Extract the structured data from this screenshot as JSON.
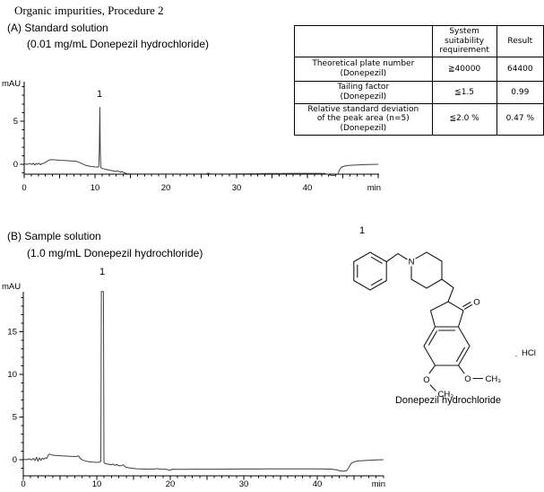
{
  "title": "Organic impurities, Procedure 2",
  "panel_a": {
    "label": "(A) Standard solution",
    "sublabel": "(0.01 mg/mL Donepezil hydrochloride)"
  },
  "panel_b": {
    "label": "(B) Sample solution",
    "sublabel": "(1.0 mg/mL Donepezil hydrochloride)"
  },
  "table": {
    "headers": [
      "",
      "System suitability requirement",
      "Result"
    ],
    "rows": [
      {
        "name": "Theoretical plate number\n(Donepezil)",
        "requirement": "≧40000",
        "result": "64400"
      },
      {
        "name": "Tailing factor\n(Donepezil)",
        "requirement": "≦1.5",
        "result": "0.99"
      },
      {
        "name": "Relative standard deviation\nof the peak area (n=5)\n(Donepezil)",
        "requirement": "≦2.0 %",
        "result": "0.47 %"
      }
    ]
  },
  "structure": {
    "peak_number": "1",
    "n": "N",
    "o": "O",
    "ch3": "CH₃",
    "salt_dot": ".",
    "salt": "HCl",
    "caption": "Donepezil hydrochloride"
  },
  "chart_data": [
    {
      "type": "line",
      "panel": "A",
      "title": "(A) Standard solution (0.01 mg/mL Donepezil hydrochloride)",
      "xlabel": "min",
      "ylabel": "mAU",
      "xlim": [
        0,
        50
      ],
      "ylim": [
        -1.15,
        9.5
      ],
      "xticks": [
        0,
        10,
        20,
        30,
        40
      ],
      "yticks": [
        0,
        5
      ],
      "x_minor_step": 1,
      "y_minor_step": 1,
      "grid": false,
      "peaks": [
        {
          "label": "1",
          "retention_min": 10.7,
          "height_mau": 6.6
        }
      ],
      "points": [
        [
          0,
          0.05
        ],
        [
          0.4,
          0.0
        ],
        [
          0.8,
          0.08
        ],
        [
          1.1,
          -0.02
        ],
        [
          1.3,
          0.12
        ],
        [
          1.5,
          -0.08
        ],
        [
          1.7,
          0.1
        ],
        [
          1.9,
          0.0
        ],
        [
          2.1,
          0.12
        ],
        [
          2.3,
          -0.05
        ],
        [
          2.5,
          0.08
        ],
        [
          2.8,
          0.12
        ],
        [
          3.1,
          0.28
        ],
        [
          3.5,
          0.48
        ],
        [
          3.9,
          0.55
        ],
        [
          4.3,
          0.52
        ],
        [
          4.7,
          0.5
        ],
        [
          5.1,
          0.46
        ],
        [
          5.6,
          0.44
        ],
        [
          6.1,
          0.42
        ],
        [
          6.6,
          0.4
        ],
        [
          7.1,
          0.36
        ],
        [
          7.5,
          0.32
        ],
        [
          7.9,
          0.18
        ],
        [
          8.3,
          0.02
        ],
        [
          8.7,
          -0.12
        ],
        [
          9.1,
          -0.2
        ],
        [
          9.5,
          -0.26
        ],
        [
          10.0,
          -0.3
        ],
        [
          10.4,
          -0.32
        ],
        [
          10.55,
          -0.25
        ],
        [
          10.62,
          2.0
        ],
        [
          10.68,
          6.6
        ],
        [
          10.75,
          1.5
        ],
        [
          10.82,
          -0.4
        ],
        [
          11.1,
          -0.5
        ],
        [
          11.5,
          -0.58
        ],
        [
          12.0,
          -0.68
        ],
        [
          12.5,
          -0.76
        ],
        [
          12.9,
          -0.82
        ],
        [
          13.2,
          -0.78
        ],
        [
          13.6,
          -0.9
        ],
        [
          13.9,
          -0.85
        ],
        [
          14.1,
          -0.98
        ],
        [
          14.5,
          -1.08
        ],
        [
          15.0,
          -1.12
        ],
        [
          16,
          -1.13
        ],
        [
          18,
          -1.12
        ],
        [
          20,
          -1.13
        ],
        [
          22,
          -1.12
        ],
        [
          24,
          -1.12
        ],
        [
          25.7,
          -1.1
        ],
        [
          26.0,
          -1.03
        ],
        [
          26.3,
          -1.12
        ],
        [
          28,
          -1.12
        ],
        [
          30,
          -1.1
        ],
        [
          32,
          -1.09
        ],
        [
          34,
          -1.07
        ],
        [
          36,
          -1.06
        ],
        [
          38,
          -1.05
        ],
        [
          40,
          -1.05
        ],
        [
          41.5,
          -1.05
        ],
        [
          42.5,
          -1.07
        ],
        [
          43.0,
          -1.2
        ],
        [
          43.5,
          -1.3
        ],
        [
          43.9,
          -1.28
        ],
        [
          44.3,
          -1.1
        ],
        [
          44.6,
          -0.55
        ],
        [
          44.9,
          -0.3
        ],
        [
          45.3,
          -0.2
        ],
        [
          45.8,
          -0.14
        ],
        [
          46.4,
          -0.1
        ],
        [
          47.0,
          -0.08
        ],
        [
          47.8,
          -0.05
        ],
        [
          48.6,
          -0.03
        ],
        [
          49.3,
          -0.01
        ],
        [
          50.0,
          0.0
        ]
      ]
    },
    {
      "type": "line",
      "panel": "B",
      "title": "(B) Sample solution (1.0 mg/mL Donepezil hydrochloride)",
      "xlabel": "min",
      "ylabel": "mAU",
      "xlim": [
        0,
        49
      ],
      "ylim": [
        -1.9,
        19.7
      ],
      "xticks": [
        0,
        10,
        20,
        30,
        40
      ],
      "yticks": [
        0,
        5,
        10,
        15
      ],
      "x_minor_step": 1,
      "y_minor_step": 1,
      "grid": false,
      "peaks": [
        {
          "label": "1",
          "retention_min": 10.7,
          "height_mau": 19.7,
          "note": "off-scale, clipped at top of axis"
        }
      ],
      "points": [
        [
          0,
          0.05
        ],
        [
          0.4,
          0.0
        ],
        [
          0.8,
          0.1
        ],
        [
          1.1,
          -0.02
        ],
        [
          1.4,
          0.15
        ],
        [
          1.6,
          -0.12
        ],
        [
          1.8,
          0.28
        ],
        [
          2.0,
          -0.18
        ],
        [
          2.2,
          0.22
        ],
        [
          2.4,
          -0.1
        ],
        [
          2.6,
          0.18
        ],
        [
          2.8,
          0.05
        ],
        [
          3.0,
          0.22
        ],
        [
          3.2,
          0.15
        ],
        [
          3.4,
          0.55
        ],
        [
          3.6,
          0.65
        ],
        [
          3.9,
          0.55
        ],
        [
          4.3,
          0.5
        ],
        [
          4.8,
          0.47
        ],
        [
          5.3,
          0.44
        ],
        [
          5.8,
          0.42
        ],
        [
          6.3,
          0.4
        ],
        [
          6.8,
          0.38
        ],
        [
          7.3,
          0.38
        ],
        [
          7.5,
          0.45
        ],
        [
          7.8,
          0.1
        ],
        [
          8.2,
          -0.08
        ],
        [
          8.6,
          -0.18
        ],
        [
          9.0,
          -0.25
        ],
        [
          9.5,
          -0.3
        ],
        [
          10.0,
          -0.32
        ],
        [
          10.4,
          -0.3
        ],
        [
          10.55,
          -0.2
        ],
        [
          10.62,
          19.7
        ],
        [
          10.9,
          19.7
        ],
        [
          10.98,
          -0.3
        ],
        [
          11.1,
          -0.45
        ],
        [
          11.4,
          -0.5
        ],
        [
          11.7,
          -0.55
        ],
        [
          12.0,
          -0.6
        ],
        [
          12.2,
          -0.5
        ],
        [
          12.45,
          -0.68
        ],
        [
          12.7,
          -0.55
        ],
        [
          12.95,
          -0.72
        ],
        [
          13.3,
          -0.72
        ],
        [
          13.6,
          -0.6
        ],
        [
          13.85,
          -0.85
        ],
        [
          14.2,
          -0.92
        ],
        [
          14.7,
          -1.0
        ],
        [
          15.4,
          -1.06
        ],
        [
          16.2,
          -1.1
        ],
        [
          17.0,
          -1.12
        ],
        [
          17.9,
          -1.1
        ],
        [
          18.2,
          -1.03
        ],
        [
          18.5,
          -1.12
        ],
        [
          19.4,
          -1.12
        ],
        [
          19.9,
          -1.25
        ],
        [
          20.3,
          -1.12
        ],
        [
          21,
          -1.13
        ],
        [
          22,
          -1.13
        ],
        [
          23,
          -1.12
        ],
        [
          24,
          -1.12
        ],
        [
          25,
          -1.12
        ],
        [
          26,
          -1.12
        ],
        [
          27,
          -1.12
        ],
        [
          28,
          -1.11
        ],
        [
          29,
          -1.1
        ],
        [
          30,
          -1.1
        ],
        [
          31,
          -1.09
        ],
        [
          32,
          -1.09
        ],
        [
          33,
          -1.08
        ],
        [
          34,
          -1.08
        ],
        [
          35,
          -1.08
        ],
        [
          36,
          -1.08
        ],
        [
          37,
          -1.08
        ],
        [
          38,
          -1.08
        ],
        [
          39,
          -1.08
        ],
        [
          40,
          -1.08
        ],
        [
          41,
          -1.09
        ],
        [
          42,
          -1.12
        ],
        [
          42.6,
          -1.18
        ],
        [
          43.1,
          -1.32
        ],
        [
          43.6,
          -1.36
        ],
        [
          44.0,
          -1.28
        ],
        [
          44.3,
          -0.9
        ],
        [
          44.6,
          -0.45
        ],
        [
          45.0,
          -0.25
        ],
        [
          45.5,
          -0.16
        ],
        [
          46.0,
          -0.12
        ],
        [
          46.6,
          -0.09
        ],
        [
          47.2,
          -0.06
        ],
        [
          48.0,
          -0.03
        ],
        [
          48.6,
          -0.01
        ],
        [
          49.0,
          0.0
        ]
      ]
    }
  ]
}
